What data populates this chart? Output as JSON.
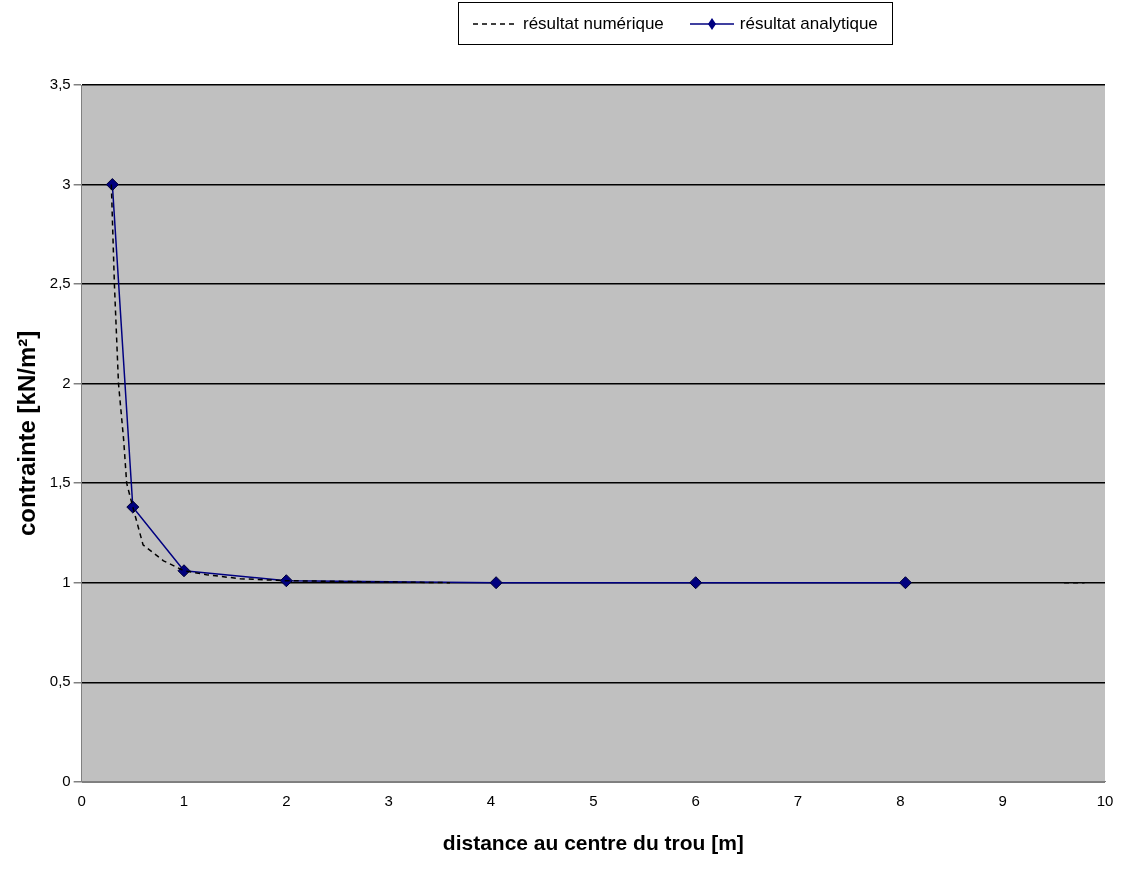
{
  "chart_data": {
    "type": "line",
    "xlabel": "distance au centre du trou [m]",
    "ylabel": "contrainte [kN/m²]",
    "xlim": [
      0,
      10
    ],
    "xticks": [
      0,
      1,
      2,
      3,
      4,
      5,
      6,
      7,
      8,
      9,
      10
    ],
    "ylim": [
      0,
      3.5
    ],
    "yticks": [
      0,
      {
        "value": 0.5,
        "label": "0,5"
      },
      1,
      {
        "value": 1.5,
        "label": "1,5"
      },
      2,
      {
        "value": 2.5,
        "label": "2,5"
      },
      3,
      {
        "value": 3.5,
        "label": "3,5"
      }
    ],
    "grid": "y",
    "legend": "top right",
    "series": [
      {
        "name": "résultat numérique",
        "color": "#000000",
        "line_style": "dashed",
        "marker": "none",
        "x": [
          0.29,
          0.32,
          0.36,
          0.41,
          0.44,
          0.5,
          0.6,
          0.8,
          1.0,
          1.22,
          1.55,
          2.0,
          3.6,
          6.6,
          9.6,
          9.8
        ],
        "values": [
          3.0,
          2.5,
          2.0,
          1.72,
          1.5,
          1.38,
          1.19,
          1.11,
          1.06,
          1.04,
          1.02,
          1.01,
          1.0,
          null,
          1.0,
          1.0
        ]
      },
      {
        "name": "résultat analytique",
        "color": "#000080",
        "line_style": "solid",
        "marker": "diamond",
        "x": [
          0.3,
          0.5,
          1.0,
          2.0,
          4.05,
          6.0,
          8.05
        ],
        "values": [
          3.0,
          1.38,
          1.06,
          1.01,
          1.0,
          1.0,
          1.0
        ]
      }
    ]
  }
}
